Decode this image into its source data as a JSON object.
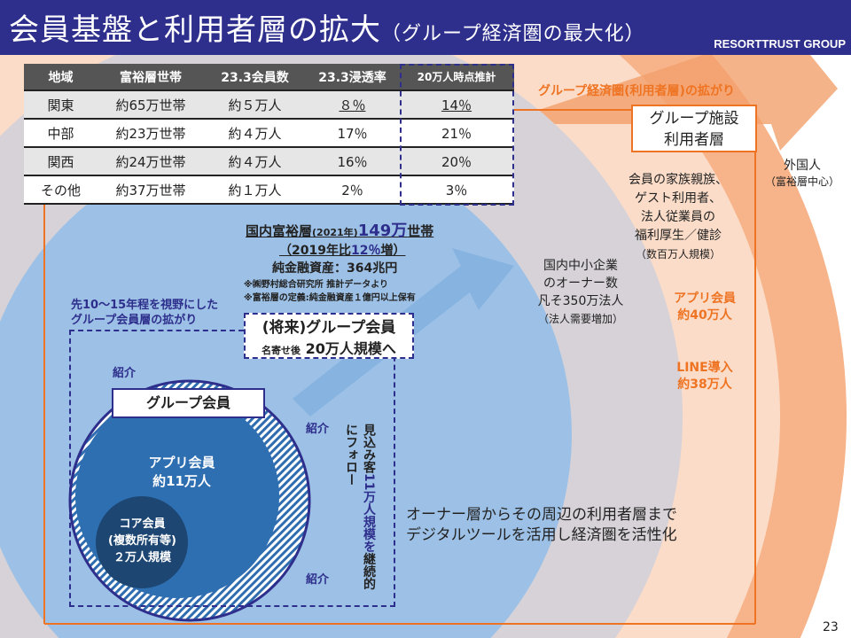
{
  "header": {
    "title": "会員基盤と利用者層の拡大",
    "subtitle": "（グループ経済圏の最大化）",
    "brand": "RESORTTRUST GROUP"
  },
  "table": {
    "headers": [
      "地域",
      "富裕層世帯",
      "23.3会員数",
      "23.3浸透率",
      "20万人時点推計"
    ],
    "rows": [
      [
        "関東",
        "約65万世帯",
        "約５万人",
        "８％",
        "14％"
      ],
      [
        "中部",
        "約23万世帯",
        "約４万人",
        "17％",
        "21％"
      ],
      [
        "関西",
        "約24万世帯",
        "約４万人",
        "16％",
        "20％"
      ],
      [
        "その他",
        "約37万世帯",
        "約１万人",
        "2％",
        "3％"
      ]
    ]
  },
  "economy": {
    "label": "グループ経済圏(利用者層)の拡がり",
    "facility_line1": "グループ施設",
    "facility_line2": "利用者層",
    "foreign": "外国人",
    "foreign_note": "（富裕層中心）",
    "family": [
      "会員の家族親族、",
      "ゲスト利用者、",
      "法人従業員の",
      "福利厚生／健診"
    ],
    "family_note": "（数百万人規模）",
    "app1": "アプリ会員",
    "app2": "約40万人",
    "line1": "LINE導入",
    "line2": "約38万人"
  },
  "sme": {
    "lines": [
      "国内中小企業",
      "のオーナー数",
      "凡そ350万法人"
    ],
    "note": "（法人需要増加）"
  },
  "wealthy": {
    "l1a": "国内富裕層",
    "l1b": "(2021年)",
    "l1c": "149万",
    "l1d": "世帯",
    "l2a": "（2019年比",
    "l2b": "12％",
    "l2c": "増）",
    "l3": "純金融資産：364兆円",
    "n1": "※㈱野村総合研究所 推計データより",
    "n2": "※富裕層の定義:純金融資産１億円以上保有"
  },
  "future": {
    "vision1": "先10～15年程を視野にした",
    "vision2": "グループ会員層の拡がり",
    "title": "(将来)グループ会員",
    "sub_a": "名寄せ後",
    "sub_b": "20万人規模へ"
  },
  "members": {
    "group": "グループ会員",
    "app1": "アプリ会員",
    "app2": "約11万人",
    "core1": "コア会員",
    "core2": "(複数所有等)",
    "core3": "２万人規模",
    "intro": "紹介",
    "follow_a": "見込み客",
    "follow_b": "11",
    "follow_c": "万人規模を",
    "follow_d": "継続的にフォロー"
  },
  "summary": [
    "オーナー層からその周辺の利用者層まで",
    "デジタルツールを活用し経済圏を活性化"
  ],
  "page": "23"
}
